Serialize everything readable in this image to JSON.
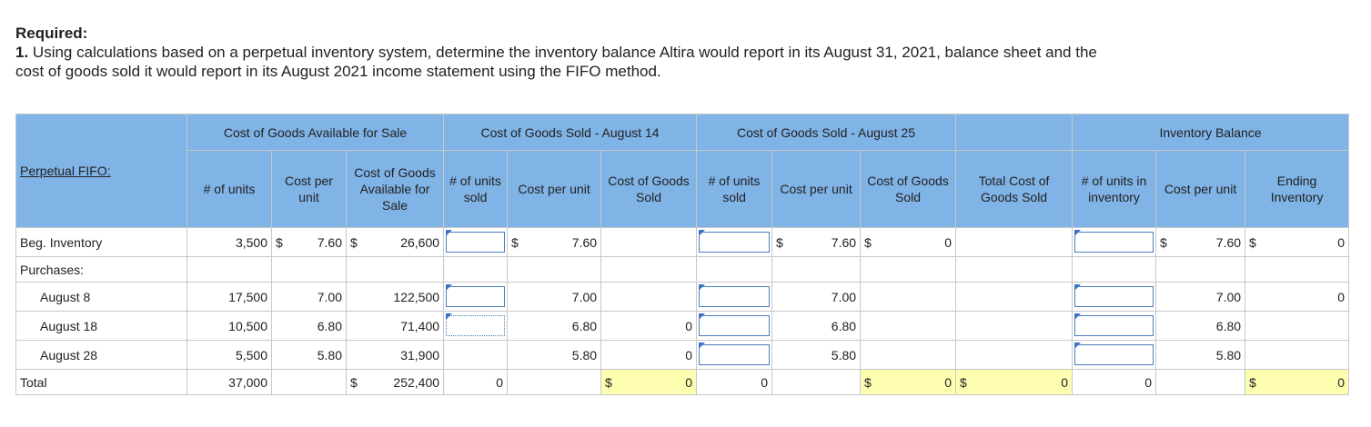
{
  "required": {
    "label": "Required:",
    "number": "1.",
    "text": "Using calculations based on a perpetual inventory system, determine the inventory balance Altira would report in its August 31, 2021, balance sheet and the cost of goods sold it would report in its August 2021 income statement using the FIFO method."
  },
  "table": {
    "title": "Perpetual FIFO:",
    "group_headers": [
      {
        "label": "Cost of Goods Available for Sale",
        "span": 3
      },
      {
        "label": "Cost of Goods Sold - August 14",
        "span": 3
      },
      {
        "label": "Cost of Goods Sold - August 25",
        "span": 3
      },
      {
        "label": null,
        "span": 1
      },
      {
        "label": "Inventory Balance",
        "span": 3
      }
    ],
    "column_headers": [
      "# of units",
      "Cost per unit",
      "Cost of Goods Available for Sale",
      "# of units sold",
      "Cost per unit",
      "Cost of Goods Sold",
      "# of units sold",
      "Cost per unit",
      "Cost of Goods Sold",
      "Total Cost of Goods Sold",
      "# of units in inventory",
      "Cost per unit",
      "Ending Inventory"
    ],
    "rows": [
      {
        "label": "Beg. Inventory",
        "cells": [
          "3,500",
          {
            "prefix": "$",
            "value": "7.60"
          },
          {
            "prefix": "$",
            "value": "26,600"
          },
          null,
          {
            "prefix": "$",
            "value": "7.60"
          },
          null,
          null,
          {
            "prefix": "$",
            "value": "7.60"
          },
          {
            "prefix": "$",
            "value": "0"
          },
          null,
          null,
          {
            "prefix": "$",
            "value": "7.60"
          },
          {
            "prefix": "$",
            "value": "0"
          }
        ]
      },
      {
        "label": "Purchases:",
        "cells": [
          null,
          null,
          null,
          null,
          null,
          null,
          null,
          null,
          null,
          null,
          null,
          null,
          null
        ]
      },
      {
        "label": "August 8",
        "cells": [
          "17,500",
          "7.00",
          "122,500",
          null,
          "7.00",
          null,
          null,
          "7.00",
          null,
          null,
          null,
          "7.00",
          "0"
        ]
      },
      {
        "label": "August 18",
        "cells": [
          "10,500",
          "6.80",
          "71,400",
          null,
          "6.80",
          "0",
          null,
          "6.80",
          null,
          null,
          null,
          "6.80",
          null
        ]
      },
      {
        "label": "August 28",
        "cells": [
          "5,500",
          "5.80",
          "31,900",
          null,
          "5.80",
          "0",
          null,
          "5.80",
          null,
          null,
          null,
          "5.80",
          null
        ]
      },
      {
        "label": "Total",
        "cells": [
          "37,000",
          null,
          {
            "prefix": "$",
            "value": "252,400"
          },
          "0",
          null,
          {
            "prefix": "$",
            "value": "0"
          },
          "0",
          null,
          {
            "prefix": "$",
            "value": "0"
          },
          {
            "prefix": "$",
            "value": "0"
          },
          "0",
          null,
          {
            "prefix": "$",
            "value": "0"
          }
        ]
      }
    ]
  }
}
